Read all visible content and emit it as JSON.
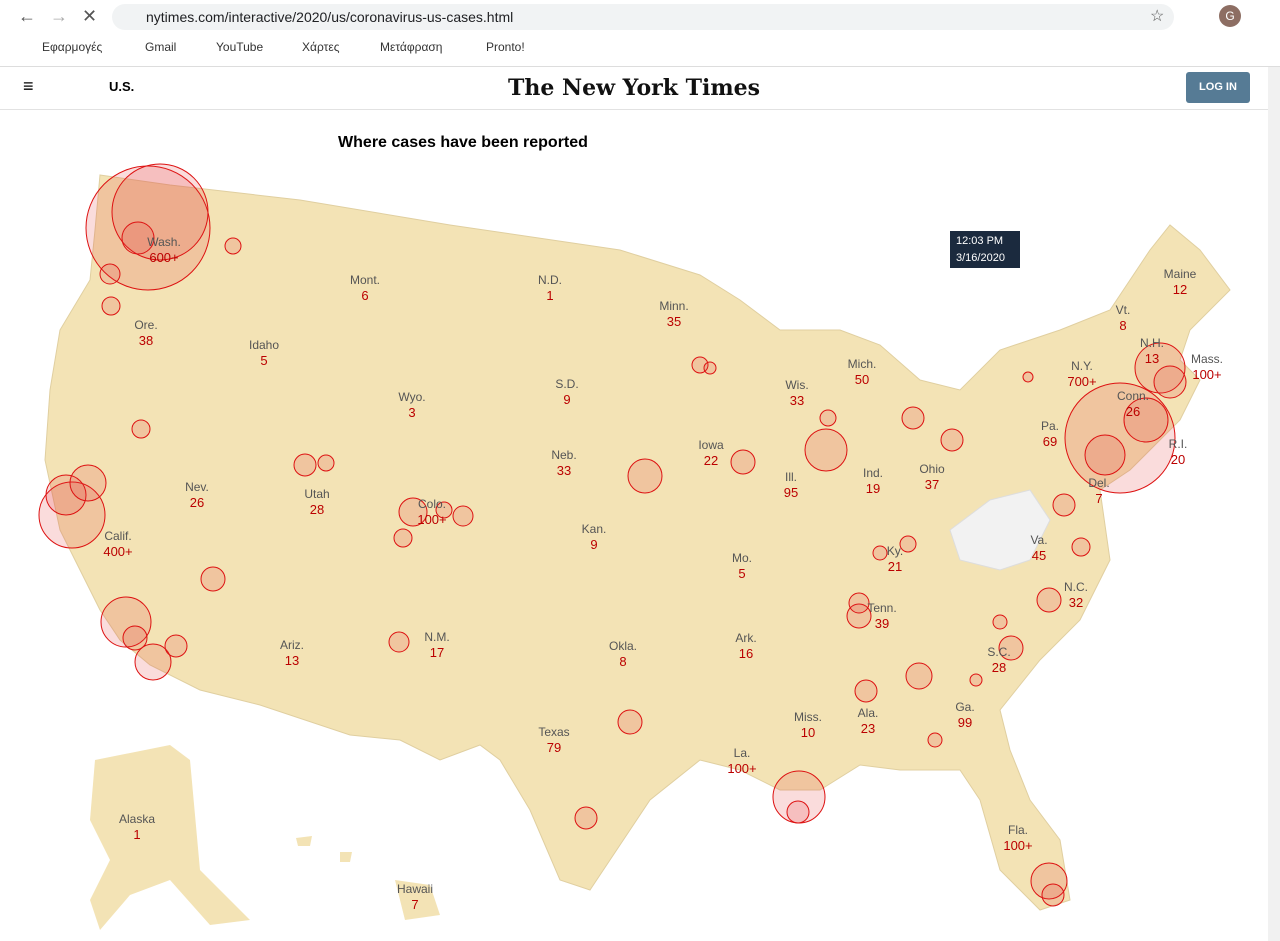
{
  "browser": {
    "url": "nytimes.com/interactive/2020/us/coronavirus-us-cases.html",
    "bookmarks": [
      "Εφαρμογές",
      "Gmail",
      "YouTube",
      "Χάρτες",
      "Μετάφραση",
      "Pronto!"
    ],
    "profile": "G"
  },
  "header": {
    "section": "U.S.",
    "logo": "The New York Times",
    "login": "LOG IN"
  },
  "map": {
    "title": "Where cases have been reported",
    "timestamp": {
      "time": "12:03 PM",
      "date": "3/16/2020"
    },
    "states": [
      {
        "name": "Wash.",
        "count": "600+"
      },
      {
        "name": "Ore.",
        "count": 38
      },
      {
        "name": "Calif.",
        "count": "400+"
      },
      {
        "name": "Nev.",
        "count": 26
      },
      {
        "name": "Idaho",
        "count": 5
      },
      {
        "name": "Mont.",
        "count": 6
      },
      {
        "name": "Wyo.",
        "count": 3
      },
      {
        "name": "Utah",
        "count": 28
      },
      {
        "name": "Colo.",
        "count": "100+"
      },
      {
        "name": "Ariz.",
        "count": 13
      },
      {
        "name": "N.M.",
        "count": 17
      },
      {
        "name": "N.D.",
        "count": 1
      },
      {
        "name": "S.D.",
        "count": 9
      },
      {
        "name": "Neb.",
        "count": 33
      },
      {
        "name": "Kan.",
        "count": 9
      },
      {
        "name": "Okla.",
        "count": 8
      },
      {
        "name": "Texas",
        "count": 79
      },
      {
        "name": "Minn.",
        "count": 35
      },
      {
        "name": "Iowa",
        "count": 22
      },
      {
        "name": "Mo.",
        "count": 5
      },
      {
        "name": "Ark.",
        "count": 16
      },
      {
        "name": "La.",
        "count": "100+"
      },
      {
        "name": "Wis.",
        "count": 33
      },
      {
        "name": "Ill.",
        "count": 95
      },
      {
        "name": "Mich.",
        "count": 50
      },
      {
        "name": "Ind.",
        "count": 19
      },
      {
        "name": "Ohio",
        "count": 37
      },
      {
        "name": "Ky.",
        "count": 21
      },
      {
        "name": "Tenn.",
        "count": 39
      },
      {
        "name": "Miss.",
        "count": 10
      },
      {
        "name": "Ala.",
        "count": 23
      },
      {
        "name": "Ga.",
        "count": 99
      },
      {
        "name": "Fla.",
        "count": "100+"
      },
      {
        "name": "S.C.",
        "count": 28
      },
      {
        "name": "N.C.",
        "count": 32
      },
      {
        "name": "Va.",
        "count": 45
      },
      {
        "name": "Pa.",
        "count": 69
      },
      {
        "name": "N.Y.",
        "count": "700+"
      },
      {
        "name": "Vt.",
        "count": 8
      },
      {
        "name": "N.H.",
        "count": 13
      },
      {
        "name": "Maine",
        "count": 12
      },
      {
        "name": "Mass.",
        "count": "100+"
      },
      {
        "name": "R.I.",
        "count": 20
      },
      {
        "name": "Conn.",
        "count": 26
      },
      {
        "name": "Del.",
        "count": 7
      },
      {
        "name": "Alaska",
        "count": 1
      },
      {
        "name": "Hawaii",
        "count": 7
      }
    ]
  }
}
